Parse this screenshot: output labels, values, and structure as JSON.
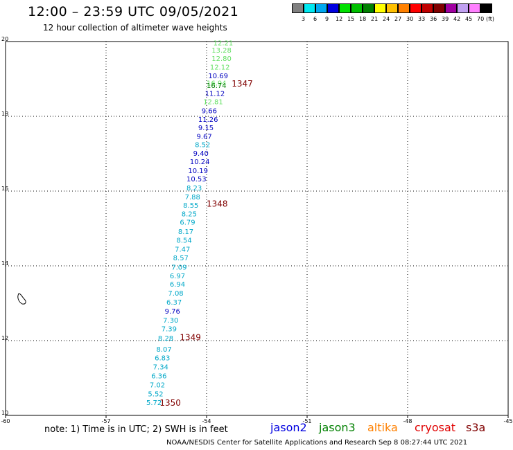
{
  "header": {
    "title": "12:00 – 23:59 UTC 09/05/2021",
    "subtitle": "12 hour collection of altimeter wave heights"
  },
  "color_scale": {
    "labels": [
      "3",
      "6",
      "9",
      "12",
      "15",
      "18",
      "21",
      "24",
      "27",
      "30",
      "33",
      "36",
      "39",
      "42",
      "45",
      "70"
    ],
    "unit": "(ft)",
    "colors": [
      "#808080",
      "#00e8f0",
      "#00a8f0",
      "#0000e0",
      "#00e000",
      "#00c000",
      "#008000",
      "#ffff00",
      "#ffc000",
      "#ff8000",
      "#ff0000",
      "#c00000",
      "#800000",
      "#a000a0",
      "#c0a0f0",
      "#ff80ff",
      "#000000"
    ]
  },
  "axes": {
    "lon_labels": [
      "-60",
      "-57",
      "-54",
      "-51",
      "-48",
      "-45"
    ],
    "lat_labels": [
      "20",
      "18",
      "16",
      "14",
      "12",
      "10"
    ],
    "lon_range": [
      -60,
      -45
    ],
    "lat_range": [
      10,
      20
    ]
  },
  "observations": [
    {
      "lon": -53.8,
      "lat": 19.9,
      "value": "12.21",
      "color": "#66e066"
    },
    {
      "lon": -53.85,
      "lat": 19.7,
      "value": "13.28",
      "color": "#66e066"
    },
    {
      "lon": -53.85,
      "lat": 19.48,
      "value": "12.80",
      "color": "#66e066"
    },
    {
      "lon": -53.9,
      "lat": 19.25,
      "value": "12.12",
      "color": "#66e066"
    },
    {
      "lon": -53.95,
      "lat": 19.02,
      "value": "10.69",
      "color": "#0000c0"
    },
    {
      "lon": -54.0,
      "lat": 18.82,
      "value": "16.94",
      "color": "#66e066"
    },
    {
      "lon": -54.0,
      "lat": 18.76,
      "value": "16.74",
      "color": "#008000"
    },
    {
      "lon": -54.05,
      "lat": 18.55,
      "value": "11.12",
      "color": "#0000c0"
    },
    {
      "lon": -54.1,
      "lat": 18.32,
      "value": "12.81",
      "color": "#66e066"
    },
    {
      "lon": -54.15,
      "lat": 18.08,
      "value": "9.66",
      "color": "#0000c0"
    },
    {
      "lon": -54.25,
      "lat": 17.85,
      "value": "11.26",
      "color": "#0000c0"
    },
    {
      "lon": -54.25,
      "lat": 17.63,
      "value": "9.15",
      "color": "#0000c0"
    },
    {
      "lon": -54.3,
      "lat": 17.4,
      "value": "9.67",
      "color": "#0000c0"
    },
    {
      "lon": -54.35,
      "lat": 17.18,
      "value": "8.52",
      "color": "#00a8c8"
    },
    {
      "lon": -54.4,
      "lat": 16.94,
      "value": "9.40",
      "color": "#0000c0"
    },
    {
      "lon": -54.5,
      "lat": 16.72,
      "value": "10.24",
      "color": "#0000c0"
    },
    {
      "lon": -54.55,
      "lat": 16.48,
      "value": "10.19",
      "color": "#0000c0"
    },
    {
      "lon": -54.6,
      "lat": 16.26,
      "value": "10.53",
      "color": "#0000c0"
    },
    {
      "lon": -54.6,
      "lat": 16.02,
      "value": "8.23",
      "color": "#00a8c8"
    },
    {
      "lon": -54.65,
      "lat": 15.78,
      "value": "7.88",
      "color": "#00a8c8"
    },
    {
      "lon": -54.7,
      "lat": 15.56,
      "value": "8.55",
      "color": "#00a8c8"
    },
    {
      "lon": -54.75,
      "lat": 15.32,
      "value": "8.25",
      "color": "#00a8c8"
    },
    {
      "lon": -54.8,
      "lat": 15.1,
      "value": "6.79",
      "color": "#00a8c8"
    },
    {
      "lon": -54.85,
      "lat": 14.85,
      "value": "8.17",
      "color": "#00a8c8"
    },
    {
      "lon": -54.9,
      "lat": 14.62,
      "value": "8.54",
      "color": "#00a8c8"
    },
    {
      "lon": -54.95,
      "lat": 14.38,
      "value": "7.47",
      "color": "#00a8c8"
    },
    {
      "lon": -55.0,
      "lat": 14.15,
      "value": "8.57",
      "color": "#00a8c8"
    },
    {
      "lon": -55.05,
      "lat": 13.9,
      "value": "7.09",
      "color": "#00a8c8"
    },
    {
      "lon": -55.1,
      "lat": 13.67,
      "value": "6.97",
      "color": "#00a8c8"
    },
    {
      "lon": -55.1,
      "lat": 13.44,
      "value": "6.94",
      "color": "#00a8c8"
    },
    {
      "lon": -55.15,
      "lat": 13.2,
      "value": "7.08",
      "color": "#00a8c8"
    },
    {
      "lon": -55.2,
      "lat": 12.96,
      "value": "6.37",
      "color": "#00a8c8"
    },
    {
      "lon": -55.25,
      "lat": 12.72,
      "value": "9.76",
      "color": "#0000c0"
    },
    {
      "lon": -55.3,
      "lat": 12.48,
      "value": "7.30",
      "color": "#00a8c8"
    },
    {
      "lon": -55.35,
      "lat": 12.25,
      "value": "7.39",
      "color": "#00a8c8"
    },
    {
      "lon": -55.45,
      "lat": 12.0,
      "value": "8.28",
      "color": "#00a8c8"
    },
    {
      "lon": -55.5,
      "lat": 11.7,
      "value": "8.07",
      "color": "#00a8c8"
    },
    {
      "lon": -55.55,
      "lat": 11.47,
      "value": "6.83",
      "color": "#00a8c8"
    },
    {
      "lon": -55.6,
      "lat": 11.23,
      "value": "7.34",
      "color": "#00a8c8"
    },
    {
      "lon": -55.65,
      "lat": 10.99,
      "value": "6.36",
      "color": "#00a8c8"
    },
    {
      "lon": -55.7,
      "lat": 10.75,
      "value": "7.02",
      "color": "#00a8c8"
    },
    {
      "lon": -55.75,
      "lat": 10.51,
      "value": "5.52",
      "color": "#00a8c8"
    },
    {
      "lon": -55.8,
      "lat": 10.28,
      "value": "5.72",
      "color": "#00a8c8"
    }
  ],
  "orbits": [
    {
      "lon": -53.25,
      "lat": 18.8,
      "value": "1347"
    },
    {
      "lon": -54.0,
      "lat": 15.58,
      "value": "1348"
    },
    {
      "lon": -54.8,
      "lat": 12.01,
      "value": "1349"
    },
    {
      "lon": -55.4,
      "lat": 10.26,
      "value": "1350"
    }
  ],
  "footer": {
    "note": "note:  1) Time is in UTC;  2) SWH is in feet",
    "satellites": [
      {
        "name": "jason2",
        "color": "#0000e0"
      },
      {
        "name": "jason3",
        "color": "#008000"
      },
      {
        "name": "altika",
        "color": "#ff8000"
      },
      {
        "name": "cryosat",
        "color": "#e00000"
      },
      {
        "name": "s3a",
        "color": "#800000"
      }
    ],
    "credit": "NOAA/NESDIS Center for Satellite Applications and Research     Sep  8 08:27:44 UTC 2021"
  }
}
